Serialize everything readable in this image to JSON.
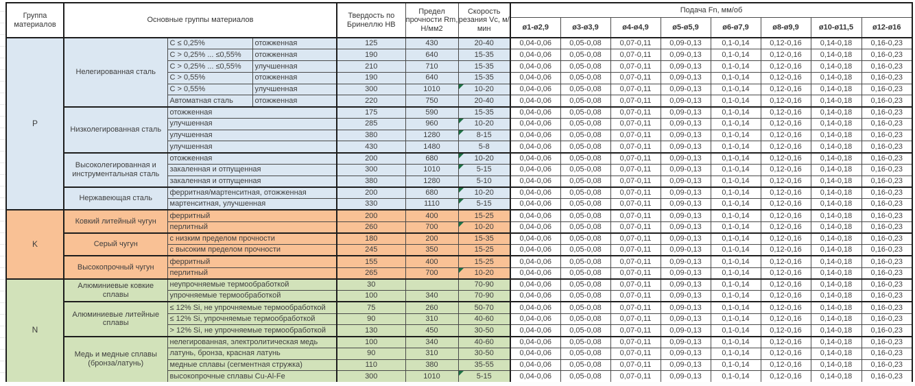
{
  "header": {
    "col_group": "Группа материалов",
    "col_main": "Основные группы материалов",
    "col_hb": "Твердость по Бринеллю HB",
    "col_rm": "Предел прочности Rm, Н/мм2",
    "col_vc": "Скорость резания Vc, м/мин",
    "feed_title": "Подача Fn, мм/об",
    "feed_cols": [
      "ø1-ø2,9",
      "ø3-ø3,9",
      "ø4-ø4,9",
      "ø5-ø5,9",
      "ø6-ø7,9",
      "ø8-ø9,9",
      "ø10-ø11,5",
      "ø12-ø16"
    ]
  },
  "feed_values": [
    "0,04-0,06",
    "0,05-0,08",
    "0,07-0,11",
    "0,09-0,13",
    "0,1-0,14",
    "0,12-0,16",
    "0,14-0,18",
    "0,16-0,23"
  ],
  "flag_color": "#1e7145",
  "groups": [
    {
      "letter": "P",
      "bg": "#dbe7f2",
      "subgroups": [
        {
          "name": "Нелегированная сталь",
          "rows": [
            {
              "spec": "C ≤ 0,25%",
              "state": "отожженная",
              "hb": "125",
              "rm": "430",
              "vc": "20-40",
              "flag": false
            },
            {
              "spec": "C > 0,25% ... ≤0,55%",
              "state": "отожженная",
              "hb": "190",
              "rm": "640",
              "vc": "15-35",
              "flag": false
            },
            {
              "spec": "C > 0,25% ... ≤0,55%",
              "state": "улучшенная",
              "hb": "210",
              "rm": "710",
              "vc": "15-35",
              "flag": false
            },
            {
              "spec": "C > 0,55%",
              "state": "отожженная",
              "hb": "190",
              "rm": "640",
              "vc": "15-35",
              "flag": false
            },
            {
              "spec": "C > 0,55%",
              "state": "улучшенная",
              "hb": "300",
              "rm": "1010",
              "vc": "10-20",
              "flag": true
            },
            {
              "spec": "Автоматная сталь",
              "state": "отожженная",
              "hb": "220",
              "rm": "750",
              "vc": "20-40",
              "flag": false
            }
          ]
        },
        {
          "name": "Низколегированная сталь",
          "rows": [
            {
              "spec": "отожженная",
              "hb": "175",
              "rm": "590",
              "vc": "15-35",
              "flag": false
            },
            {
              "spec": "улучшенная",
              "hb": "285",
              "rm": "960",
              "vc": "10-20",
              "flag": true
            },
            {
              "spec": "улучшенная",
              "hb": "380",
              "rm": "1280",
              "vc": "8-15",
              "flag": true
            },
            {
              "spec": "улучшенная",
              "hb": "430",
              "rm": "1480",
              "vc": "5-8",
              "flag": false
            }
          ]
        },
        {
          "name": "Высоколегированная и инструментальная сталь",
          "rows": [
            {
              "spec": "отожженная",
              "hb": "200",
              "rm": "680",
              "vc": "10-20",
              "flag": true
            },
            {
              "spec": "закаленная и отпущенная",
              "hb": "300",
              "rm": "1010",
              "vc": "5-15",
              "flag": true
            },
            {
              "spec": "закаленная и отпущенная",
              "hb": "380",
              "rm": "1280",
              "vc": "5-10",
              "flag": false
            }
          ]
        },
        {
          "name": "Нержавеющая сталь",
          "rows": [
            {
              "spec": "ферритная/мартенситная, отожженная",
              "hb": "200",
              "rm": "680",
              "vc": "10-20",
              "flag": true
            },
            {
              "spec": "мартенситная, улучшенная",
              "hb": "330",
              "rm": "1110",
              "vc": "5-15",
              "flag": true
            }
          ]
        }
      ]
    },
    {
      "letter": "K",
      "bg": "#f9c195",
      "subgroups": [
        {
          "name": "Ковкий литейный чугун",
          "rows": [
            {
              "spec": "ферритный",
              "hb": "200",
              "rm": "400",
              "vc": "15-25",
              "flag": false
            },
            {
              "spec": "перлитный",
              "hb": "260",
              "rm": "700",
              "vc": "10-20",
              "flag": true
            }
          ]
        },
        {
          "name": "Серый чугун",
          "rows": [
            {
              "spec": "с низким пределом прочности",
              "hb": "180",
              "rm": "200",
              "vc": "15-35",
              "flag": false
            },
            {
              "spec": "с высоким пределом прочности",
              "hb": "245",
              "rm": "350",
              "vc": "15-25",
              "flag": false
            }
          ]
        },
        {
          "name": "Высокопрочный чугун",
          "rows": [
            {
              "spec": "ферритный",
              "hb": "155",
              "rm": "400",
              "vc": "15-25",
              "flag": false
            },
            {
              "spec": "перлитный",
              "hb": "265",
              "rm": "700",
              "vc": "10-20",
              "flag": true
            }
          ]
        }
      ]
    },
    {
      "letter": "N",
      "bg": "#d2e2ba",
      "subgroups": [
        {
          "name": "Алюминиевые ковкие сплавы",
          "rows": [
            {
              "spec": "неупрочняемые термообработкой",
              "hb": "30",
              "rm": "",
              "vc": "70-90",
              "flag": false
            },
            {
              "spec": "упрочняемые термообработкой",
              "hb": "100",
              "rm": "340",
              "vc": "70-90",
              "flag": false
            }
          ]
        },
        {
          "name": "Алюминиевые литейные сплавы",
          "rows": [
            {
              "spec": "≤ 12% Si, не упрочняемые термообработкой",
              "hb": "75",
              "rm": "260",
              "vc": "50-70",
              "flag": false
            },
            {
              "spec": "≤ 12% Si, упрочняемые термообработкой",
              "hb": "90",
              "rm": "310",
              "vc": "40-60",
              "flag": false
            },
            {
              "spec": "> 12% Si, не упрочняемые термообработкой",
              "hb": "130",
              "rm": "450",
              "vc": "30-50",
              "flag": false
            }
          ]
        },
        {
          "name": "Медь и медные сплавы (бронза/латунь)",
          "rows": [
            {
              "spec": "нелегированная, электролитическая медь",
              "hb": "100",
              "rm": "340",
              "vc": "40-60",
              "flag": false
            },
            {
              "spec": "латунь, бронза, красная латунь",
              "hb": "90",
              "rm": "310",
              "vc": "30-50",
              "flag": false
            },
            {
              "spec": "медные сплавы (сегментная стружка)",
              "hb": "110",
              "rm": "380",
              "vc": "35-55",
              "flag": false
            },
            {
              "spec": "высокопрочные сплавы Cu-Al-Fe",
              "hb": "300",
              "rm": "1010",
              "vc": "5-15",
              "flag": true
            }
          ]
        }
      ]
    }
  ]
}
